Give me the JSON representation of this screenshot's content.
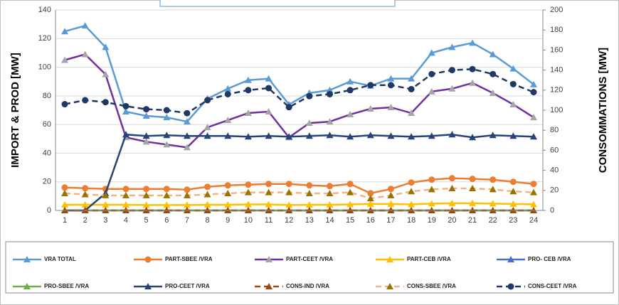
{
  "chart_data": {
    "type": "line",
    "y_label": "IMPORT & PROD [MW]",
    "y2_label": "CONSOMMATIONS [MW]",
    "categories": [
      "1",
      "2",
      "3",
      "4",
      "5",
      "6",
      "7",
      "8",
      "9",
      "10",
      "11",
      "12",
      "13",
      "14",
      "15",
      "16",
      "17",
      "18",
      "19",
      "20",
      "21",
      "22",
      "23",
      "24"
    ],
    "ylim": [
      0,
      140
    ],
    "yticks": [
      0,
      20,
      40,
      60,
      80,
      100,
      120,
      140
    ],
    "y2lim": [
      0,
      200
    ],
    "y2ticks": [
      0,
      20,
      40,
      60,
      80,
      100,
      120,
      140,
      160,
      180,
      200
    ],
    "grid": true,
    "series": [
      {
        "name": "VRA TOTAL",
        "color": "#5b9bd5",
        "marker": "triangle",
        "marker_color": "#5b9bd5",
        "dashed": false,
        "values": [
          125,
          129,
          114,
          69,
          66,
          65,
          62,
          78,
          85,
          91,
          92,
          74,
          82,
          84,
          90,
          87,
          92,
          92,
          110,
          114,
          117,
          109,
          99,
          88
        ]
      },
      {
        "name": "PART-SBEE /VRA",
        "color": "#ed7d31",
        "marker": "circle",
        "marker_color": "#ed7d31",
        "dashed": false,
        "values": [
          16,
          15.5,
          15,
          15,
          15,
          15,
          14.5,
          16.5,
          17.5,
          18,
          18.5,
          18.5,
          17.5,
          17,
          18.5,
          12,
          15,
          19.5,
          21.5,
          22.5,
          22,
          21.5,
          20,
          18.5
        ]
      },
      {
        "name": "PART-CEET /VRA",
        "color": "#7030a0",
        "marker": "triangle",
        "marker_color": "#a5a5a5",
        "dashed": false,
        "values": [
          105,
          109,
          95,
          51,
          48,
          46,
          44,
          58,
          63,
          68,
          69,
          51,
          61,
          62,
          67,
          71,
          72,
          68,
          83,
          85,
          89,
          82,
          74,
          65
        ]
      },
      {
        "name": "PART-CEB /VRA",
        "color": "#ffc000",
        "marker": "triangle",
        "marker_color": "#ffc000",
        "dashed": false,
        "values": [
          4,
          4,
          4,
          4,
          3.8,
          3.8,
          3.8,
          4,
          4,
          4.2,
          4.2,
          3.8,
          4,
          4,
          4.2,
          4.5,
          4.5,
          4.2,
          4.8,
          5,
          5,
          4.8,
          4.5,
          4.2
        ]
      },
      {
        "name": "PRO- CEB /VRA",
        "color": "#4472c4",
        "marker": "triangle",
        "marker_color": "#4472c4",
        "dashed": false,
        "values": [
          0,
          0,
          0,
          0,
          0,
          0,
          0,
          0,
          0,
          0,
          0,
          0,
          0,
          0,
          0,
          0,
          0,
          0,
          0,
          0,
          0,
          0,
          0,
          0
        ]
      },
      {
        "name": "PRO-SBEE /VRA",
        "color": "#70ad47",
        "marker": "triangle",
        "marker_color": "#70ad47",
        "dashed": false,
        "values": [
          0,
          0,
          0,
          0,
          0,
          0,
          0,
          0,
          0,
          0,
          0,
          0,
          0,
          0,
          0,
          0,
          0,
          0,
          0,
          0,
          0,
          0,
          0,
          0
        ]
      },
      {
        "name": "PRO-CEET /VRA",
        "color": "#264478",
        "marker": "triangle",
        "marker_color": "#264478",
        "dashed": false,
        "values": [
          0,
          0,
          12,
          53,
          52,
          52.5,
          52,
          52,
          52,
          51.5,
          52,
          51.5,
          52,
          52.5,
          51.5,
          52.5,
          52,
          51.5,
          52,
          53,
          51,
          52.5,
          52,
          51.5
        ]
      },
      {
        "name": "CONS-IND /VRA",
        "color": "#9e480e",
        "marker": "triangle",
        "marker_color": "#9e480e",
        "dashed": true,
        "axis": "y2",
        "values": [
          0,
          0,
          0,
          0,
          0,
          0,
          0,
          0,
          0,
          0,
          0,
          0,
          0,
          0,
          0,
          0,
          0,
          0,
          0,
          0,
          0,
          0,
          0,
          0
        ]
      },
      {
        "name": "CONS-SBEE  /VRA",
        "color": "#f4b183",
        "marker": "triangle",
        "marker_color": "#997300",
        "dashed": true,
        "axis": "y2",
        "values": [
          17,
          16,
          15,
          15,
          15,
          15,
          15,
          16,
          17,
          18,
          18,
          18,
          17,
          17,
          18,
          12,
          15,
          19,
          21,
          22,
          22,
          21,
          19,
          18
        ]
      },
      {
        "name": "CONS-CEET  /VRA",
        "color": "#203864",
        "marker": "circle",
        "marker_color": "#203864",
        "dashed": true,
        "axis": "y2",
        "values": [
          106,
          110,
          108,
          104,
          101,
          100,
          97,
          110,
          116,
          120,
          122,
          103,
          114,
          116,
          120,
          125,
          125,
          121,
          136,
          140,
          141,
          136,
          126,
          118
        ]
      }
    ]
  }
}
